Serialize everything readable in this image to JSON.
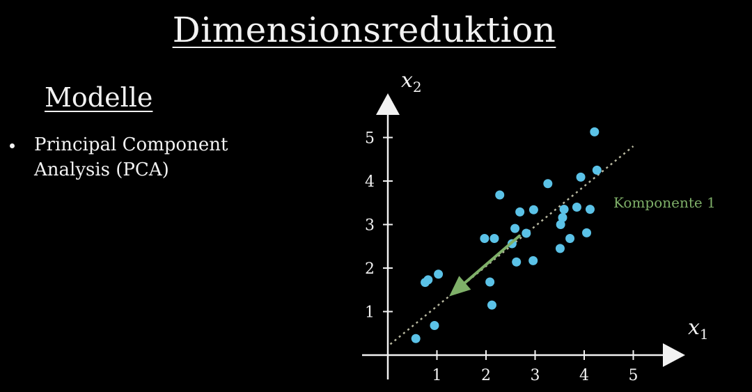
{
  "title": "Dimensionsreduktion",
  "section_heading": "Modelle",
  "bullets": [
    "Principal Component Analysis (PCA)"
  ],
  "colors": {
    "background": "#000000",
    "text": "#f2f2f2",
    "points": "#5bc2e7",
    "component": "#7fb069",
    "dotted_line": "#b8b8a0"
  },
  "chart_data": {
    "type": "scatter",
    "xlabel": "x",
    "xlabel_sub": "1",
    "ylabel": "x",
    "ylabel_sub": "2",
    "xlim": [
      0,
      5.8
    ],
    "ylim": [
      0,
      5.6
    ],
    "xticks": [
      1,
      2,
      3,
      4,
      5
    ],
    "yticks": [
      1,
      2,
      3,
      4,
      5
    ],
    "grid": false,
    "points": [
      {
        "x": 0.57,
        "y": 0.38
      },
      {
        "x": 0.76,
        "y": 1.67
      },
      {
        "x": 0.82,
        "y": 1.73
      },
      {
        "x": 0.95,
        "y": 0.68
      },
      {
        "x": 1.03,
        "y": 1.86
      },
      {
        "x": 1.97,
        "y": 2.68
      },
      {
        "x": 2.08,
        "y": 1.68
      },
      {
        "x": 2.12,
        "y": 1.15
      },
      {
        "x": 2.17,
        "y": 2.68
      },
      {
        "x": 2.28,
        "y": 3.68
      },
      {
        "x": 2.53,
        "y": 2.56
      },
      {
        "x": 2.59,
        "y": 2.91
      },
      {
        "x": 2.62,
        "y": 2.14
      },
      {
        "x": 2.69,
        "y": 3.29
      },
      {
        "x": 2.82,
        "y": 2.8
      },
      {
        "x": 2.96,
        "y": 2.17
      },
      {
        "x": 2.97,
        "y": 3.34
      },
      {
        "x": 3.26,
        "y": 3.94
      },
      {
        "x": 3.51,
        "y": 2.45
      },
      {
        "x": 3.52,
        "y": 3.0
      },
      {
        "x": 3.56,
        "y": 3.16
      },
      {
        "x": 3.59,
        "y": 3.35
      },
      {
        "x": 3.71,
        "y": 2.68
      },
      {
        "x": 3.85,
        "y": 3.4
      },
      {
        "x": 3.93,
        "y": 4.09
      },
      {
        "x": 4.05,
        "y": 2.81
      },
      {
        "x": 4.12,
        "y": 3.35
      },
      {
        "x": 4.21,
        "y": 5.13
      },
      {
        "x": 4.26,
        "y": 4.25
      }
    ],
    "dotted_line": {
      "from": [
        0.05,
        0.25
      ],
      "to": [
        5.0,
        4.8
      ]
    },
    "component_arrow": {
      "from": [
        2.68,
        2.74
      ],
      "to": [
        1.25,
        1.35
      ]
    },
    "annotations": [
      {
        "text": "Komponente 1"
      }
    ]
  }
}
